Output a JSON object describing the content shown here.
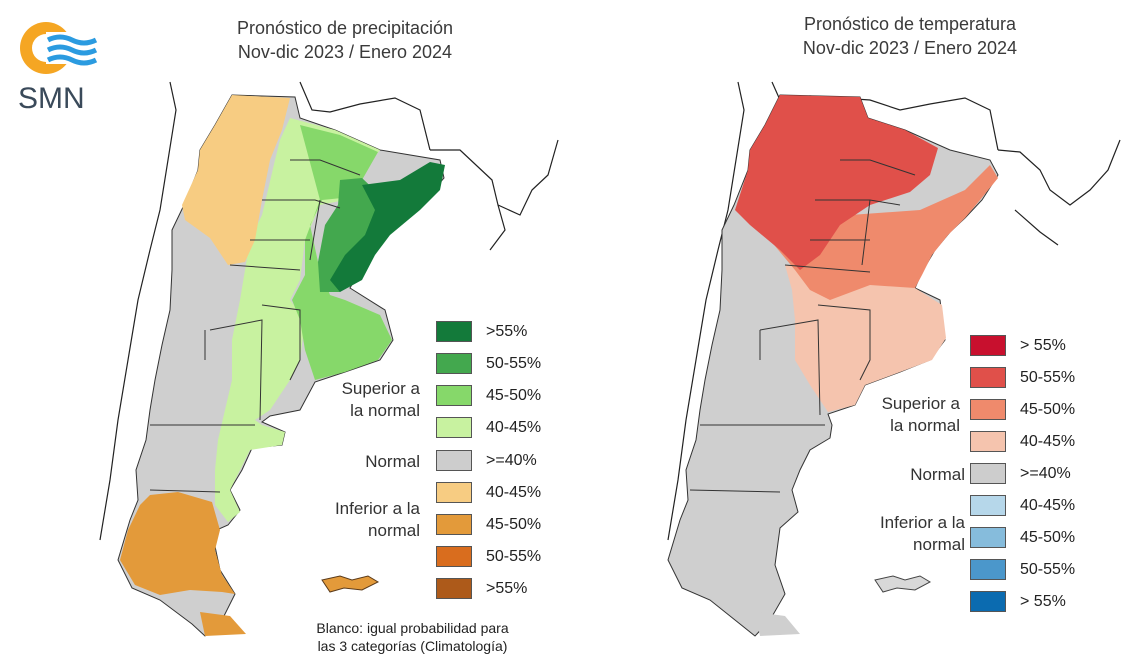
{
  "logo": {
    "text": "SMN"
  },
  "maps": [
    {
      "title_line1": "Pronóstico de precipitación",
      "title_line2": "Nov-dic 2023 / Enero 2024",
      "legend": [
        {
          "label": ">55%",
          "color": "#137a3a"
        },
        {
          "label": "50-55%",
          "color": "#43a84e"
        },
        {
          "label": "45-50%",
          "color": "#86d86a"
        },
        {
          "label": "40-45%",
          "color": "#c8f2a0"
        },
        {
          "label": ">=40%",
          "color": "#cdcdcd"
        },
        {
          "label": "40-45%",
          "color": "#f7cc82"
        },
        {
          "label": "45-50%",
          "color": "#e39a3a"
        },
        {
          "label": "50-55%",
          "color": "#d96d1e"
        },
        {
          "label": ">55%",
          "color": "#ad5a1a"
        }
      ],
      "category_superior": [
        "Superior a",
        "la normal"
      ],
      "category_normal": "Normal",
      "category_inferior": [
        "Inferior a la",
        "normal"
      ],
      "note_line1": "Blanco: igual probabilidad para",
      "note_line2": "las 3 categorías (Climatología)"
    },
    {
      "title_line1": "Pronóstico de temperatura",
      "title_line2": "Nov-dic 2023 / Enero 2024",
      "legend": [
        {
          "label": "> 55%",
          "color": "#c8102e"
        },
        {
          "label": "50-55%",
          "color": "#e0504a"
        },
        {
          "label": "45-50%",
          "color": "#ef8a6c"
        },
        {
          "label": "40-45%",
          "color": "#f5c4ae"
        },
        {
          "label": ">=40%",
          "color": "#cdcdcd"
        },
        {
          "label": "40-45%",
          "color": "#b6d7ea"
        },
        {
          "label": "45-50%",
          "color": "#86bcdc"
        },
        {
          "label": "50-55%",
          "color": "#4b97cb"
        },
        {
          "label": "> 55%",
          "color": "#0b6bb0"
        }
      ],
      "category_superior": [
        "Superior a",
        "la normal"
      ],
      "category_normal": "Normal",
      "category_inferior": [
        "Inferior a la",
        "normal"
      ]
    }
  ]
}
